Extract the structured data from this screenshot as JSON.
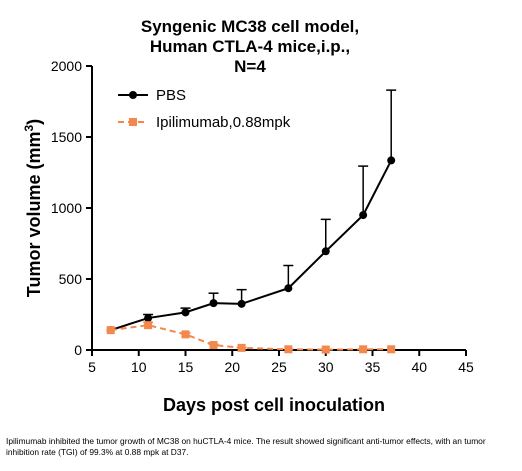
{
  "chart_data": {
    "type": "line",
    "title_lines": [
      "Syngenic MC38 cell model,",
      "Human CTLA-4 mice,i.p.,",
      "N=4"
    ],
    "xlabel": "Days post cell inoculation",
    "ylabel_main": "Tumor volume (mm",
    "ylabel_sup": "3",
    "ylabel_close": ")",
    "xlim": [
      5,
      45
    ],
    "ylim": [
      0,
      2000
    ],
    "xticks": [
      "5",
      "10",
      "15",
      "20",
      "25",
      "30",
      "35",
      "40",
      "45"
    ],
    "yticks": [
      "0",
      "500",
      "1000",
      "1500",
      "2000"
    ],
    "grid": false,
    "legend_position": "top-left",
    "series": [
      {
        "name": "PBS",
        "color": "#000000",
        "marker": "circle",
        "line_style": "solid",
        "points": [
          {
            "x": 7,
            "y": 140,
            "err": 0
          },
          {
            "x": 11,
            "y": 225,
            "err": 25
          },
          {
            "x": 15,
            "y": 265,
            "err": 30
          },
          {
            "x": 18,
            "y": 330,
            "err": 70
          },
          {
            "x": 21,
            "y": 325,
            "err": 100
          },
          {
            "x": 26,
            "y": 435,
            "err": 160
          },
          {
            "x": 30,
            "y": 695,
            "err": 225
          },
          {
            "x": 34,
            "y": 950,
            "err": 345
          },
          {
            "x": 37,
            "y": 1335,
            "err": 495
          }
        ]
      },
      {
        "name": "Ipilimumab,0.88mpk",
        "color": "#F4874B",
        "marker": "square",
        "line_style": "dashed",
        "points": [
          {
            "x": 7,
            "y": 140,
            "err": 0
          },
          {
            "x": 11,
            "y": 175,
            "err": 20
          },
          {
            "x": 15,
            "y": 110,
            "err": 10
          },
          {
            "x": 18,
            "y": 35,
            "err": 5
          },
          {
            "x": 21,
            "y": 15,
            "err": 3
          },
          {
            "x": 26,
            "y": 5,
            "err": 0
          },
          {
            "x": 30,
            "y": 3,
            "err": 0
          },
          {
            "x": 34,
            "y": 5,
            "err": 0
          },
          {
            "x": 37,
            "y": 5,
            "err": 0
          }
        ]
      }
    ]
  },
  "caption": "Ipilimumab  inhibited the tumor growth of MC38 on huCTLA-4 mice. The result showed significant anti-tumor effects, with an tumor inhibition rate (TGI) of 99.3% at 0.88 mpk at D37."
}
